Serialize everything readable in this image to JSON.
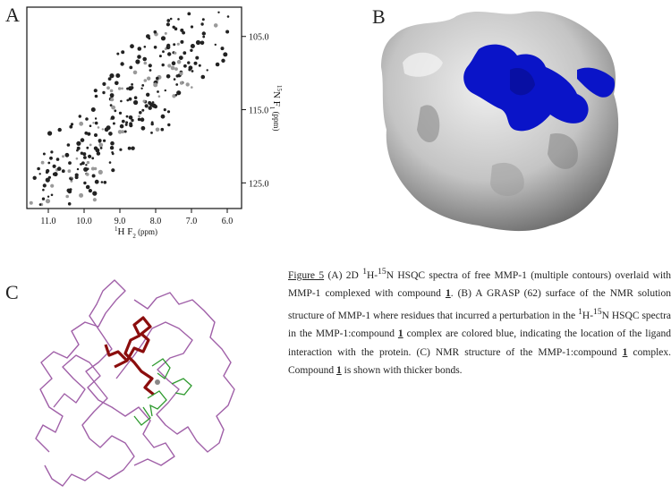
{
  "panel_labels": {
    "a": "A",
    "b": "B",
    "c": "C"
  },
  "spectrum": {
    "x_axis_label_sup": "1",
    "x_axis_label_main": "H F",
    "x_axis_label_sub": "2",
    "x_axis_label_unit": " (ppm)",
    "y_axis_label_sup": "15",
    "y_axis_label_main": "N F",
    "y_axis_label_sub": "1",
    "y_axis_label_unit": " (ppm)",
    "x_ticks": [
      "11.0",
      "10.0",
      "9.0",
      "8.0",
      "7.0",
      "6.0"
    ],
    "y_ticks": [
      "105.0",
      "115.0",
      "125.0"
    ]
  },
  "caption": {
    "figure_label": "Figure 5",
    "t1": " (A) 2D ",
    "s1": "1",
    "t2": "H-",
    "s2": "15",
    "t3": "N HSQC spectra of free MMP-1 (multiple contours) overlaid with MMP-1 complexed with compound ",
    "c1": "1",
    "t4": ". (B) A GRASP (62) surface of the NMR solution structure of MMP-1 where residues that incurred a perturbation in the ",
    "s3": "1",
    "t5": "H-",
    "s4": "15",
    "t6": "N HSQC spectra in the MMP-1:compound ",
    "c2": "1",
    "t7": " complex are colored blue, indicating the location of the ligand interaction with the protein.  (C) NMR structure of the MMP-1:compound ",
    "c3": "1",
    "t8": " complex.  Compound ",
    "c4": "1",
    "t9": " is shown with thicker bonds."
  },
  "colors": {
    "surface": "#c8c8c8",
    "binding_site": "#0a14c8",
    "backbone": "#a060a8",
    "ligand": "#8b0d0d",
    "side_chains": "#2e9a2e",
    "peaks": "#222222"
  }
}
